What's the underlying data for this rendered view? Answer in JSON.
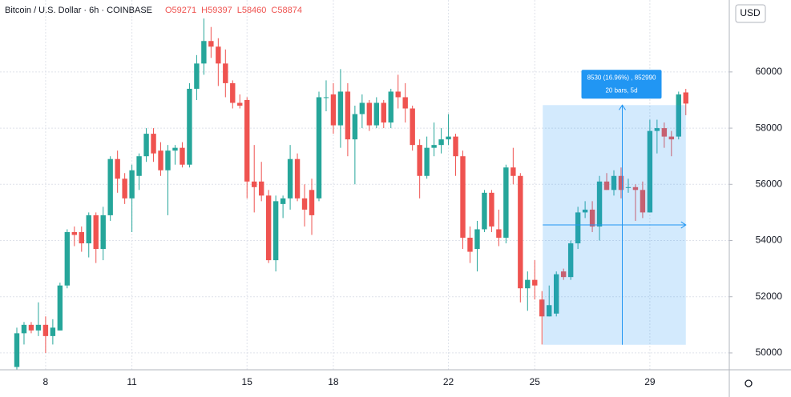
{
  "chart_data": {
    "type": "candlestick",
    "title": "Bitcoin / U.S. Dollar · 6h · COINBASE",
    "header_values": [
      "O59271",
      "H59397",
      "L58460",
      "C58874"
    ],
    "currency": "USD",
    "up_color": "#26a69a",
    "down_color": "#ef5350",
    "categories": [
      null,
      null,
      null,
      null,
      "8",
      null,
      null,
      null,
      null,
      null,
      null,
      null,
      null,
      null,
      null,
      null,
      "11",
      null,
      null,
      null,
      null,
      null,
      null,
      null,
      null,
      null,
      null,
      null,
      null,
      null,
      null,
      null,
      "15",
      null,
      null,
      null,
      null,
      null,
      null,
      null,
      null,
      null,
      null,
      null,
      "18",
      null,
      null,
      null,
      null,
      null,
      null,
      null,
      null,
      null,
      null,
      null,
      null,
      null,
      null,
      null,
      "22",
      null,
      null,
      null,
      null,
      null,
      null,
      null,
      null,
      null,
      null,
      null,
      "25",
      null,
      null,
      null,
      null,
      null,
      null,
      null,
      null,
      null,
      null,
      null,
      null,
      null,
      null,
      null,
      "29",
      null,
      null,
      null,
      null,
      null
    ],
    "open": [
      49500,
      50700,
      51000,
      50800,
      51000,
      50600,
      50800,
      52400,
      54300,
      54300,
      53900,
      54900,
      53700,
      54900,
      56900,
      56200,
      55500,
      56300,
      57000,
      57800,
      57200,
      56500,
      57200,
      57300,
      56700,
      59400,
      60300,
      61100,
      60900,
      60300,
      59600,
      58900,
      59000,
      56100,
      56100,
      55600,
      53300,
      55300,
      55500,
      56900,
      55500,
      55800,
      55500,
      59100,
      59200,
      58100,
      59300,
      57600,
      58500,
      58900,
      58100,
      58900,
      58200,
      59300,
      59100,
      58700,
      57400,
      56300,
      57300,
      57400,
      57600,
      57700,
      57000,
      54100,
      53700,
      54400,
      55700,
      54400,
      54100,
      56600,
      56300,
      52300,
      52600,
      51900,
      51300,
      51400,
      52900,
      52700,
      53900,
      55000,
      55100,
      54500,
      56100,
      55800,
      56300,
      55900,
      55900,
      55800,
      55000,
      57900,
      58000,
      57700,
      57700,
      59271
    ],
    "high": [
      50900,
      51100,
      51100,
      51800,
      51300,
      51200,
      52500,
      54400,
      54500,
      54500,
      55000,
      55000,
      55200,
      57000,
      57200,
      56400,
      56700,
      57100,
      58000,
      58000,
      57500,
      57400,
      57400,
      57500,
      59600,
      60600,
      61900,
      61600,
      61200,
      60800,
      59700,
      59200,
      59100,
      57400,
      56800,
      55800,
      55600,
      55600,
      57400,
      57100,
      56000,
      56200,
      59300,
      59700,
      59600,
      60100,
      59600,
      58800,
      59200,
      59000,
      59100,
      59000,
      59400,
      59900,
      59600,
      58800,
      57600,
      57700,
      58200,
      58000,
      58500,
      57800,
      57200,
      54500,
      54700,
      55800,
      55800,
      55100,
      56700,
      57300,
      56400,
      52900,
      53300,
      52200,
      52400,
      52900,
      53000,
      54000,
      55200,
      55400,
      55400,
      56300,
      56400,
      56500,
      56600,
      56200,
      56000,
      56100,
      58300,
      58300,
      58200,
      57900,
      59300,
      59397
    ],
    "low": [
      49400,
      50300,
      50700,
      50600,
      50000,
      50300,
      50800,
      52300,
      53800,
      53600,
      53400,
      53200,
      53300,
      54700,
      55700,
      55300,
      54300,
      55800,
      56800,
      56800,
      56300,
      54900,
      56700,
      56600,
      56600,
      59000,
      59900,
      60500,
      59500,
      59100,
      58700,
      58700,
      55500,
      55000,
      55400,
      53200,
      52900,
      54800,
      55100,
      55400,
      54500,
      54200,
      55400,
      58600,
      57800,
      57300,
      57000,
      56000,
      58000,
      57900,
      58000,
      58000,
      58000,
      58700,
      58200,
      57200,
      55500,
      56200,
      57000,
      57100,
      57400,
      56300,
      53700,
      53200,
      52900,
      54300,
      54300,
      53800,
      53900,
      56000,
      51800,
      51500,
      51900,
      50300,
      51300,
      51300,
      52600,
      52600,
      53700,
      54800,
      54300,
      54000,
      55800,
      55600,
      55500,
      55700,
      54700,
      54800,
      55000,
      57100,
      57300,
      57000,
      57600,
      58460
    ],
    "close": [
      50700,
      51000,
      50800,
      51000,
      50600,
      50900,
      52400,
      54300,
      54200,
      53900,
      54900,
      53700,
      54900,
      56900,
      56200,
      55500,
      56500,
      57000,
      57800,
      57100,
      56500,
      57200,
      57300,
      56700,
      59400,
      60300,
      61100,
      60900,
      60300,
      59600,
      58900,
      58800,
      56100,
      55900,
      55600,
      53300,
      55400,
      55500,
      56900,
      55500,
      55100,
      54900,
      59100,
      59100,
      58100,
      59300,
      57600,
      58500,
      58900,
      58100,
      58900,
      58200,
      59300,
      59100,
      58700,
      57400,
      56300,
      57300,
      57400,
      57600,
      57700,
      57000,
      54100,
      53600,
      54400,
      55700,
      54500,
      54100,
      56600,
      56300,
      52300,
      52600,
      52400,
      51300,
      51700,
      52800,
      52700,
      53900,
      55000,
      55100,
      54500,
      56100,
      55800,
      56300,
      55800,
      55900,
      55800,
      55000,
      57900,
      58000,
      57700,
      57600,
      59200,
      58874
    ],
    "ylim": [
      49400,
      62560
    ],
    "yticks": [
      50000,
      52000,
      54000,
      56000,
      58000,
      60000
    ],
    "grid": true,
    "measure": {
      "label": "8530 (16.96%) , 852990",
      "sublabel": "20 bars, 5d",
      "range": [
        50290,
        58820
      ],
      "color": "#2196f3"
    }
  }
}
